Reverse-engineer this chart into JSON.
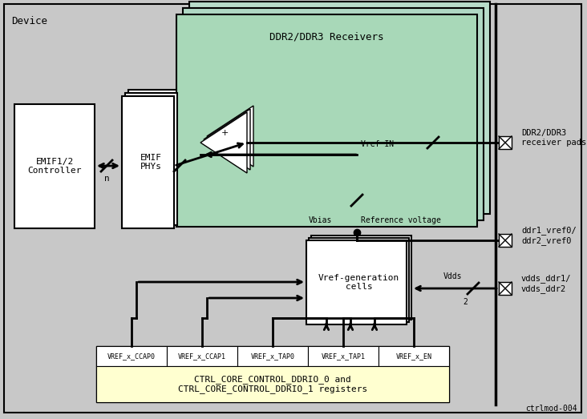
{
  "fig_width": 7.32,
  "fig_height": 5.23,
  "dpi": 100,
  "bg_color": "#c8c8c8",
  "device_label": "Device",
  "footnote": "ctrlmod-004",
  "ddr_color": "#a8d8b8",
  "register_top_labels": [
    "VREF_x_CCAP0",
    "VREF_x_CCAP1",
    "VREF_x_TAP0",
    "VREF_x_TAP1",
    "VREF_x_EN"
  ],
  "register_bottom_label": "CTRL_CORE_CONTROL_DDRIO_0 and\nCTRL_CORE_CONTROL_DDRIO_1 registers",
  "label_ddr_receiver_pads": "DDR2/DDR3\nreceiver pads",
  "label_ddr1_vref0": "ddr1_vref0/\nddr2_vref0",
  "label_vdds": "vdds_ddr1/\nvdds_ddr2",
  "emif_phys_label": "EMIF\nPHYs",
  "emif_ctrl_label": "EMIF1/2\nController",
  "ddr_receivers_label": "DDR2/DDR3 Receivers",
  "vref_gen_label": "Vref-generation\ncells"
}
